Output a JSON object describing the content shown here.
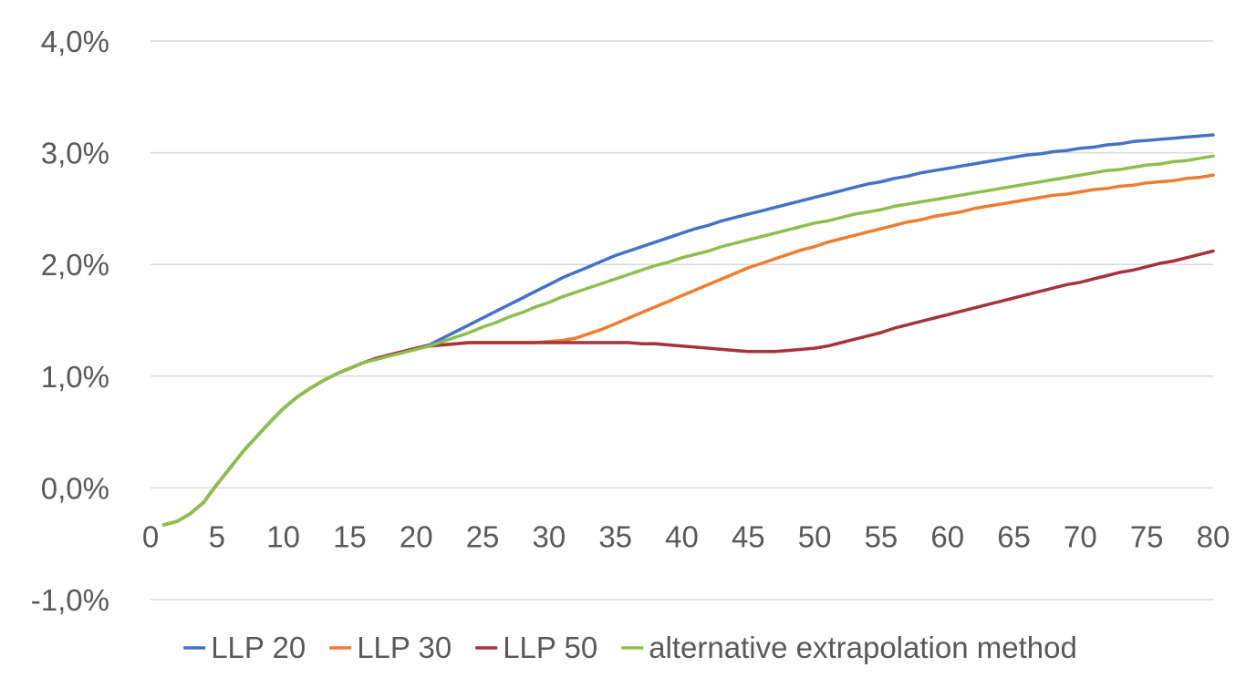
{
  "chart_data": {
    "type": "line",
    "title": "",
    "xlabel": "",
    "ylabel": "",
    "x_ticks": [
      "0",
      "5",
      "10",
      "15",
      "20",
      "25",
      "30",
      "35",
      "40",
      "45",
      "50",
      "55",
      "60",
      "65",
      "70",
      "75",
      "80"
    ],
    "y_ticks": [
      "-1,0%",
      "0,0%",
      "1,0%",
      "2,0%",
      "3,0%",
      "4,0%"
    ],
    "xlim": [
      0,
      80
    ],
    "ylim": [
      -1.0,
      4.0
    ],
    "grid": true,
    "legend_position": "bottom",
    "x": [
      1,
      2,
      3,
      4,
      5,
      6,
      7,
      8,
      9,
      10,
      11,
      12,
      13,
      14,
      15,
      16,
      17,
      18,
      19,
      20,
      21,
      22,
      23,
      24,
      25,
      26,
      27,
      28,
      29,
      30,
      31,
      32,
      33,
      34,
      35,
      36,
      37,
      38,
      39,
      40,
      41,
      42,
      43,
      44,
      45,
      46,
      47,
      48,
      49,
      50,
      51,
      52,
      53,
      54,
      55,
      56,
      57,
      58,
      59,
      60,
      61,
      62,
      63,
      64,
      65,
      66,
      67,
      68,
      69,
      70,
      71,
      72,
      73,
      74,
      75,
      76,
      77,
      78,
      79,
      80
    ],
    "series": [
      {
        "name": "LLP 20",
        "color": "#4472C4",
        "values": [
          -0.33,
          -0.3,
          -0.23,
          -0.13,
          0.03,
          0.18,
          0.33,
          0.46,
          0.59,
          0.71,
          0.81,
          0.89,
          0.96,
          1.02,
          1.07,
          1.12,
          1.16,
          1.19,
          1.22,
          1.25,
          1.28,
          1.34,
          1.4,
          1.46,
          1.52,
          1.58,
          1.64,
          1.7,
          1.76,
          1.82,
          1.88,
          1.93,
          1.98,
          2.03,
          2.08,
          2.12,
          2.16,
          2.2,
          2.24,
          2.28,
          2.32,
          2.35,
          2.39,
          2.42,
          2.45,
          2.48,
          2.51,
          2.54,
          2.57,
          2.6,
          2.63,
          2.66,
          2.69,
          2.72,
          2.74,
          2.77,
          2.79,
          2.82,
          2.84,
          2.86,
          2.88,
          2.9,
          2.92,
          2.94,
          2.96,
          2.98,
          2.99,
          3.01,
          3.02,
          3.04,
          3.05,
          3.07,
          3.08,
          3.1,
          3.11,
          3.12,
          3.13,
          3.14,
          3.15,
          3.16
        ]
      },
      {
        "name": "LLP 30",
        "color": "#ED7D31",
        "values": [
          -0.33,
          -0.3,
          -0.23,
          -0.13,
          0.03,
          0.18,
          0.33,
          0.46,
          0.59,
          0.71,
          0.81,
          0.89,
          0.96,
          1.02,
          1.07,
          1.12,
          1.16,
          1.19,
          1.22,
          1.25,
          1.27,
          1.28,
          1.29,
          1.3,
          1.3,
          1.3,
          1.3,
          1.3,
          1.3,
          1.31,
          1.32,
          1.34,
          1.38,
          1.42,
          1.47,
          1.52,
          1.57,
          1.62,
          1.67,
          1.72,
          1.77,
          1.82,
          1.87,
          1.92,
          1.97,
          2.01,
          2.05,
          2.09,
          2.13,
          2.16,
          2.2,
          2.23,
          2.26,
          2.29,
          2.32,
          2.35,
          2.38,
          2.4,
          2.43,
          2.45,
          2.47,
          2.5,
          2.52,
          2.54,
          2.56,
          2.58,
          2.6,
          2.62,
          2.63,
          2.65,
          2.67,
          2.68,
          2.7,
          2.71,
          2.73,
          2.74,
          2.75,
          2.77,
          2.78,
          2.8
        ]
      },
      {
        "name": "LLP 50",
        "color": "#A5333A",
        "values": [
          -0.33,
          -0.3,
          -0.23,
          -0.13,
          0.03,
          0.18,
          0.33,
          0.46,
          0.59,
          0.71,
          0.81,
          0.89,
          0.96,
          1.02,
          1.07,
          1.12,
          1.16,
          1.19,
          1.22,
          1.25,
          1.27,
          1.28,
          1.29,
          1.3,
          1.3,
          1.3,
          1.3,
          1.3,
          1.3,
          1.3,
          1.3,
          1.3,
          1.3,
          1.3,
          1.3,
          1.3,
          1.29,
          1.29,
          1.28,
          1.27,
          1.26,
          1.25,
          1.24,
          1.23,
          1.22,
          1.22,
          1.22,
          1.23,
          1.24,
          1.25,
          1.27,
          1.3,
          1.33,
          1.36,
          1.39,
          1.43,
          1.46,
          1.49,
          1.52,
          1.55,
          1.58,
          1.61,
          1.64,
          1.67,
          1.7,
          1.73,
          1.76,
          1.79,
          1.82,
          1.84,
          1.87,
          1.9,
          1.93,
          1.95,
          1.98,
          2.01,
          2.03,
          2.06,
          2.09,
          2.12
        ]
      },
      {
        "name": "alternative extrapolation method",
        "color": "#8CBF4D",
        "values": [
          -0.33,
          -0.3,
          -0.23,
          -0.13,
          0.03,
          0.18,
          0.33,
          0.46,
          0.59,
          0.71,
          0.81,
          0.89,
          0.96,
          1.02,
          1.07,
          1.12,
          1.15,
          1.18,
          1.21,
          1.24,
          1.27,
          1.31,
          1.35,
          1.39,
          1.44,
          1.48,
          1.53,
          1.57,
          1.62,
          1.66,
          1.71,
          1.75,
          1.79,
          1.83,
          1.87,
          1.91,
          1.95,
          1.99,
          2.02,
          2.06,
          2.09,
          2.12,
          2.16,
          2.19,
          2.22,
          2.25,
          2.28,
          2.31,
          2.34,
          2.37,
          2.39,
          2.42,
          2.45,
          2.47,
          2.49,
          2.52,
          2.54,
          2.56,
          2.58,
          2.6,
          2.62,
          2.64,
          2.66,
          2.68,
          2.7,
          2.72,
          2.74,
          2.76,
          2.78,
          2.8,
          2.82,
          2.84,
          2.85,
          2.87,
          2.89,
          2.9,
          2.92,
          2.93,
          2.95,
          2.97
        ]
      }
    ]
  }
}
